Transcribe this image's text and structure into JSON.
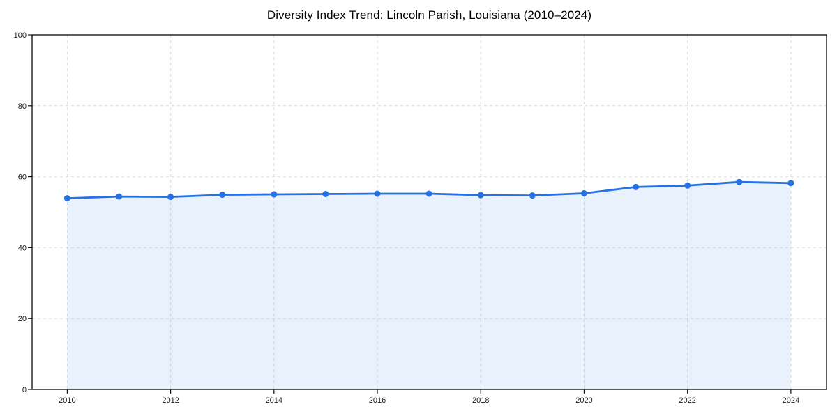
{
  "page": {
    "background": "#ffffff"
  },
  "chart_data": {
    "type": "line",
    "title": "Diversity Index Trend: Lincoln Parish, Louisiana (2010–2024)",
    "x": [
      2010,
      2011,
      2012,
      2013,
      2014,
      2015,
      2016,
      2017,
      2018,
      2019,
      2020,
      2021,
      2022,
      2023,
      2024
    ],
    "series": [
      {
        "name": "Diversity Index",
        "values": [
          53.9,
          54.4,
          54.3,
          54.9,
          55.0,
          55.1,
          55.2,
          55.2,
          54.8,
          54.7,
          55.3,
          57.1,
          57.5,
          58.5,
          58.2
        ]
      }
    ],
    "xlabel": "",
    "ylabel": "",
    "xlim": [
      2009.32,
      2024.69
    ],
    "ylim": [
      0,
      100
    ],
    "xticks": [
      2010,
      2012,
      2014,
      2016,
      2018,
      2020,
      2022,
      2024
    ],
    "yticks": [
      0,
      20,
      40,
      60,
      80,
      100
    ],
    "grid": true,
    "grid_style": "dashed",
    "legend": false,
    "area_fill": true,
    "marker": "circle",
    "colors": {
      "line": "#2671e3",
      "marker": "#2671e3",
      "area_fill": "rgba(38,113,227,0.10)",
      "grid": "#dcdcdc",
      "axis": "#1a1a1a",
      "tick_label": "#1a1a1a",
      "title": "#000000"
    }
  }
}
